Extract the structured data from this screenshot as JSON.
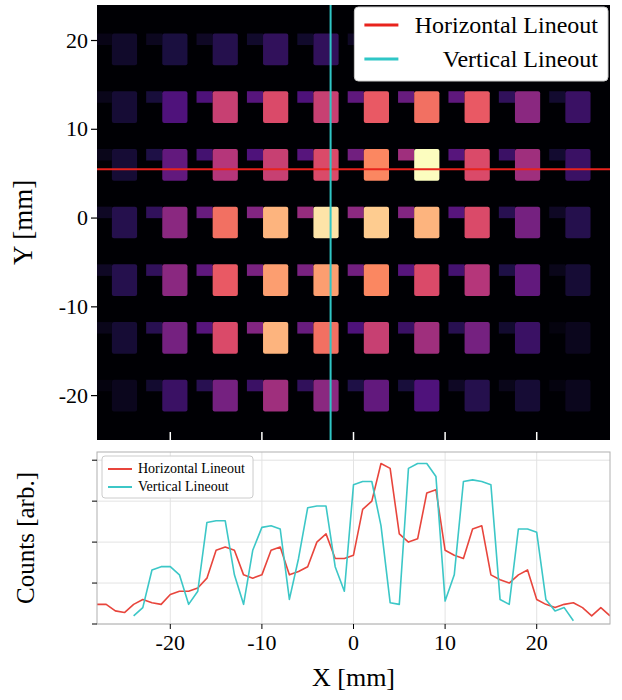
{
  "chart_data": [
    {
      "type": "heatmap",
      "y_label": "Y [mm]",
      "xlim": [
        -28,
        28
      ],
      "ylim": [
        -25,
        24
      ],
      "xticks": [
        -20,
        -10,
        0,
        10,
        20
      ],
      "yticks": [
        -20,
        -10,
        0,
        10,
        20
      ],
      "tick_labels": "y",
      "cell_x": [
        -25,
        -19.5,
        -14,
        -8.5,
        -3,
        2.5,
        8,
        13.5,
        19,
        24.5
      ],
      "cell_y": [
        19,
        12.5,
        6,
        -0.5,
        -7,
        -13.5,
        -20
      ],
      "cells": [
        [
          0.08,
          0.12,
          0.15,
          0.18,
          0.18,
          0.15,
          0.12,
          0.1,
          0.08,
          0.05
        ],
        [
          0.1,
          0.25,
          0.55,
          0.6,
          0.55,
          0.65,
          0.7,
          0.65,
          0.4,
          0.2
        ],
        [
          0.1,
          0.3,
          0.5,
          0.55,
          0.6,
          0.75,
          1.0,
          0.6,
          0.45,
          0.2
        ],
        [
          0.15,
          0.4,
          0.7,
          0.85,
          0.95,
          0.9,
          0.85,
          0.6,
          0.35,
          0.15
        ],
        [
          0.15,
          0.4,
          0.65,
          0.8,
          0.8,
          0.75,
          0.6,
          0.5,
          0.3,
          0.1
        ],
        [
          0.1,
          0.35,
          0.6,
          0.85,
          0.7,
          0.55,
          0.45,
          0.35,
          0.2,
          0.05
        ],
        [
          0.05,
          0.2,
          0.35,
          0.45,
          0.4,
          0.3,
          0.25,
          0.15,
          0.1,
          0.05
        ]
      ],
      "color_range": [
        0,
        1
      ],
      "series": [
        {
          "name": "Horizontal Lineout",
          "color": "#e8231c",
          "y": 5.5
        },
        {
          "name": "Vertical Lineout",
          "color": "#2fc6c6",
          "x": -2.5
        }
      ],
      "legend": "upper right"
    },
    {
      "type": "line",
      "x_label": "X [mm]",
      "y_label": "Counts [arb.]",
      "xlim": [
        -28,
        28
      ],
      "ylim": [
        0,
        1.05
      ],
      "xticks": [
        -20,
        -10,
        0,
        10,
        20
      ],
      "yticks": [
        0,
        0.25,
        0.5,
        0.75,
        1
      ],
      "tick_labels": "x",
      "grid": true,
      "legend": "upper left",
      "x": [
        -28,
        -27,
        -26,
        -25,
        -24,
        -23,
        -22,
        -21,
        -20,
        -19,
        -18,
        -17,
        -16,
        -15,
        -14,
        -13,
        -12,
        -11,
        -10,
        -9,
        -8,
        -7,
        -6,
        -5,
        -4,
        -3,
        -2,
        -1,
        0,
        1,
        2,
        3,
        4,
        5,
        6,
        7,
        8,
        9,
        10,
        11,
        12,
        13,
        14,
        15,
        16,
        17,
        18,
        19,
        20,
        21,
        22,
        23,
        24,
        25,
        26,
        27,
        28
      ],
      "series": [
        {
          "name": "Horizontal Lineout",
          "color": "#e8453c",
          "values": [
            0.12,
            0.12,
            0.08,
            0.07,
            0.12,
            0.15,
            0.13,
            0.12,
            0.18,
            0.2,
            0.2,
            0.22,
            0.28,
            0.45,
            0.47,
            0.45,
            0.3,
            0.28,
            0.3,
            0.45,
            0.47,
            0.3,
            0.32,
            0.35,
            0.5,
            0.55,
            0.4,
            0.4,
            0.42,
            0.7,
            0.75,
            0.98,
            0.95,
            0.55,
            0.5,
            0.52,
            0.8,
            0.82,
            0.45,
            0.42,
            0.4,
            0.58,
            0.6,
            0.3,
            0.27,
            0.25,
            0.3,
            0.33,
            0.15,
            0.12,
            0.1,
            0.12,
            0.13,
            0.1,
            0.05,
            0.1,
            0.05
          ]
        },
        {
          "name": "Vertical Lineout",
          "color": "#3cc7c7",
          "values": [
            null,
            null,
            null,
            null,
            0.05,
            0.1,
            0.33,
            0.35,
            0.35,
            0.3,
            0.12,
            0.2,
            0.62,
            0.63,
            0.63,
            0.3,
            0.12,
            0.45,
            0.59,
            0.6,
            0.58,
            0.15,
            0.4,
            0.71,
            0.72,
            0.72,
            0.35,
            0.2,
            0.85,
            0.87,
            0.87,
            0.6,
            0.13,
            0.12,
            0.95,
            0.98,
            0.98,
            0.9,
            0.14,
            0.3,
            0.87,
            0.88,
            0.87,
            0.85,
            0.15,
            0.12,
            0.58,
            0.58,
            0.56,
            0.15,
            0.08,
            0.1,
            0.02,
            null,
            null,
            null,
            null
          ]
        }
      ]
    }
  ]
}
